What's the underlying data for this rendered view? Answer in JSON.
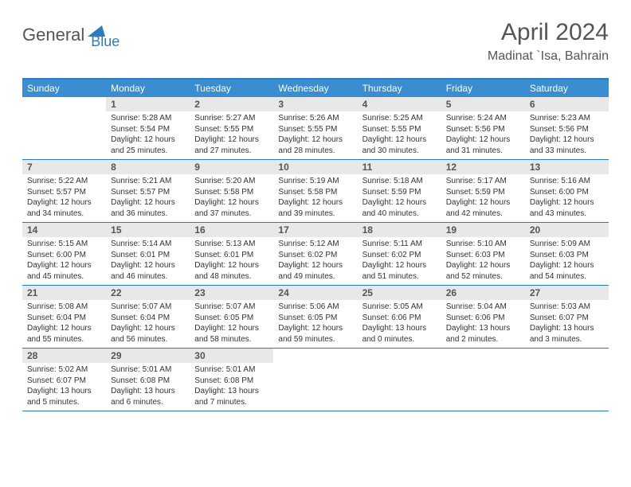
{
  "logo": {
    "text1": "General",
    "text2": "Blue"
  },
  "title": "April 2024",
  "location": "Madinat `Isa, Bahrain",
  "colors": {
    "header_bg": "#3a8dd0",
    "border": "#2b7bbf",
    "daynum_bg": "#e8e8e8",
    "logo_blue": "#2b7bbf",
    "logo_gray": "#555555",
    "text": "#333333"
  },
  "day_names": [
    "Sunday",
    "Monday",
    "Tuesday",
    "Wednesday",
    "Thursday",
    "Friday",
    "Saturday"
  ],
  "first_weekday_offset": 1,
  "days": [
    {
      "num": 1,
      "sunrise": "5:28 AM",
      "sunset": "5:54 PM",
      "daylight": "12 hours and 25 minutes."
    },
    {
      "num": 2,
      "sunrise": "5:27 AM",
      "sunset": "5:55 PM",
      "daylight": "12 hours and 27 minutes."
    },
    {
      "num": 3,
      "sunrise": "5:26 AM",
      "sunset": "5:55 PM",
      "daylight": "12 hours and 28 minutes."
    },
    {
      "num": 4,
      "sunrise": "5:25 AM",
      "sunset": "5:55 PM",
      "daylight": "12 hours and 30 minutes."
    },
    {
      "num": 5,
      "sunrise": "5:24 AM",
      "sunset": "5:56 PM",
      "daylight": "12 hours and 31 minutes."
    },
    {
      "num": 6,
      "sunrise": "5:23 AM",
      "sunset": "5:56 PM",
      "daylight": "12 hours and 33 minutes."
    },
    {
      "num": 7,
      "sunrise": "5:22 AM",
      "sunset": "5:57 PM",
      "daylight": "12 hours and 34 minutes."
    },
    {
      "num": 8,
      "sunrise": "5:21 AM",
      "sunset": "5:57 PM",
      "daylight": "12 hours and 36 minutes."
    },
    {
      "num": 9,
      "sunrise": "5:20 AM",
      "sunset": "5:58 PM",
      "daylight": "12 hours and 37 minutes."
    },
    {
      "num": 10,
      "sunrise": "5:19 AM",
      "sunset": "5:58 PM",
      "daylight": "12 hours and 39 minutes."
    },
    {
      "num": 11,
      "sunrise": "5:18 AM",
      "sunset": "5:59 PM",
      "daylight": "12 hours and 40 minutes."
    },
    {
      "num": 12,
      "sunrise": "5:17 AM",
      "sunset": "5:59 PM",
      "daylight": "12 hours and 42 minutes."
    },
    {
      "num": 13,
      "sunrise": "5:16 AM",
      "sunset": "6:00 PM",
      "daylight": "12 hours and 43 minutes."
    },
    {
      "num": 14,
      "sunrise": "5:15 AM",
      "sunset": "6:00 PM",
      "daylight": "12 hours and 45 minutes."
    },
    {
      "num": 15,
      "sunrise": "5:14 AM",
      "sunset": "6:01 PM",
      "daylight": "12 hours and 46 minutes."
    },
    {
      "num": 16,
      "sunrise": "5:13 AM",
      "sunset": "6:01 PM",
      "daylight": "12 hours and 48 minutes."
    },
    {
      "num": 17,
      "sunrise": "5:12 AM",
      "sunset": "6:02 PM",
      "daylight": "12 hours and 49 minutes."
    },
    {
      "num": 18,
      "sunrise": "5:11 AM",
      "sunset": "6:02 PM",
      "daylight": "12 hours and 51 minutes."
    },
    {
      "num": 19,
      "sunrise": "5:10 AM",
      "sunset": "6:03 PM",
      "daylight": "12 hours and 52 minutes."
    },
    {
      "num": 20,
      "sunrise": "5:09 AM",
      "sunset": "6:03 PM",
      "daylight": "12 hours and 54 minutes."
    },
    {
      "num": 21,
      "sunrise": "5:08 AM",
      "sunset": "6:04 PM",
      "daylight": "12 hours and 55 minutes."
    },
    {
      "num": 22,
      "sunrise": "5:07 AM",
      "sunset": "6:04 PM",
      "daylight": "12 hours and 56 minutes."
    },
    {
      "num": 23,
      "sunrise": "5:07 AM",
      "sunset": "6:05 PM",
      "daylight": "12 hours and 58 minutes."
    },
    {
      "num": 24,
      "sunrise": "5:06 AM",
      "sunset": "6:05 PM",
      "daylight": "12 hours and 59 minutes."
    },
    {
      "num": 25,
      "sunrise": "5:05 AM",
      "sunset": "6:06 PM",
      "daylight": "13 hours and 0 minutes."
    },
    {
      "num": 26,
      "sunrise": "5:04 AM",
      "sunset": "6:06 PM",
      "daylight": "13 hours and 2 minutes."
    },
    {
      "num": 27,
      "sunrise": "5:03 AM",
      "sunset": "6:07 PM",
      "daylight": "13 hours and 3 minutes."
    },
    {
      "num": 28,
      "sunrise": "5:02 AM",
      "sunset": "6:07 PM",
      "daylight": "13 hours and 5 minutes."
    },
    {
      "num": 29,
      "sunrise": "5:01 AM",
      "sunset": "6:08 PM",
      "daylight": "13 hours and 6 minutes."
    },
    {
      "num": 30,
      "sunrise": "5:01 AM",
      "sunset": "6:08 PM",
      "daylight": "13 hours and 7 minutes."
    }
  ],
  "labels": {
    "sunrise": "Sunrise:",
    "sunset": "Sunset:",
    "daylight": "Daylight:"
  }
}
